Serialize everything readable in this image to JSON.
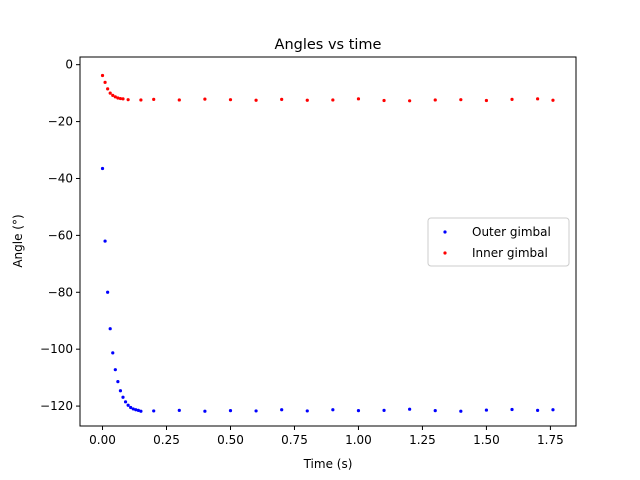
{
  "chart_data": {
    "type": "scatter",
    "title": "Angles vs time",
    "xlabel": "Time (s)",
    "ylabel": "Angle (°)",
    "xlim": [
      -0.088,
      1.85
    ],
    "ylim": [
      -127,
      2.7
    ],
    "xticks": [
      0.0,
      0.25,
      0.5,
      0.75,
      1.0,
      1.25,
      1.5,
      1.75
    ],
    "xtick_labels": [
      "0.00",
      "0.25",
      "0.50",
      "0.75",
      "1.00",
      "1.25",
      "1.50",
      "1.75"
    ],
    "yticks": [
      0,
      -20,
      -40,
      -60,
      -80,
      -100,
      -120
    ],
    "ytick_labels": [
      "0",
      "−20",
      "−40",
      "−60",
      "−80",
      "−100",
      "−120"
    ],
    "grid": false,
    "legend_position": "center-right",
    "series": [
      {
        "name": "Outer gimbal",
        "color": "#0000ff",
        "points": [
          [
            0.0,
            -36.5
          ],
          [
            0.01,
            -62.0
          ],
          [
            0.02,
            -80.0
          ],
          [
            0.03,
            -92.8
          ],
          [
            0.04,
            -101.3
          ],
          [
            0.05,
            -107.2
          ],
          [
            0.06,
            -111.4
          ],
          [
            0.07,
            -114.6
          ],
          [
            0.08,
            -116.9
          ],
          [
            0.09,
            -118.5
          ],
          [
            0.1,
            -119.7
          ],
          [
            0.11,
            -120.5
          ],
          [
            0.12,
            -121.0
          ],
          [
            0.13,
            -121.3
          ],
          [
            0.14,
            -121.5
          ],
          [
            0.15,
            -121.8
          ],
          [
            0.2,
            -121.7
          ],
          [
            0.3,
            -121.5
          ],
          [
            0.4,
            -121.8
          ],
          [
            0.5,
            -121.6
          ],
          [
            0.6,
            -121.7
          ],
          [
            0.7,
            -121.3
          ],
          [
            0.8,
            -121.7
          ],
          [
            0.9,
            -121.3
          ],
          [
            1.0,
            -121.6
          ],
          [
            1.1,
            -121.5
          ],
          [
            1.2,
            -121.1
          ],
          [
            1.3,
            -121.6
          ],
          [
            1.4,
            -121.8
          ],
          [
            1.5,
            -121.4
          ],
          [
            1.6,
            -121.2
          ],
          [
            1.7,
            -121.5
          ],
          [
            1.76,
            -121.3
          ]
        ]
      },
      {
        "name": "Inner gimbal",
        "color": "#ff0000",
        "points": [
          [
            0.0,
            -3.8
          ],
          [
            0.01,
            -6.2
          ],
          [
            0.02,
            -8.5
          ],
          [
            0.03,
            -10.0
          ],
          [
            0.04,
            -10.8
          ],
          [
            0.05,
            -11.3
          ],
          [
            0.06,
            -11.7
          ],
          [
            0.07,
            -11.9
          ],
          [
            0.08,
            -12.0
          ],
          [
            0.1,
            -12.3
          ],
          [
            0.15,
            -12.4
          ],
          [
            0.2,
            -12.2
          ],
          [
            0.3,
            -12.4
          ],
          [
            0.4,
            -12.1
          ],
          [
            0.5,
            -12.3
          ],
          [
            0.6,
            -12.5
          ],
          [
            0.7,
            -12.2
          ],
          [
            0.8,
            -12.5
          ],
          [
            0.9,
            -12.4
          ],
          [
            1.0,
            -12.0
          ],
          [
            1.1,
            -12.6
          ],
          [
            1.2,
            -12.7
          ],
          [
            1.3,
            -12.4
          ],
          [
            1.4,
            -12.3
          ],
          [
            1.5,
            -12.6
          ],
          [
            1.6,
            -12.2
          ],
          [
            1.7,
            -12.0
          ],
          [
            1.76,
            -12.5
          ]
        ]
      }
    ]
  }
}
